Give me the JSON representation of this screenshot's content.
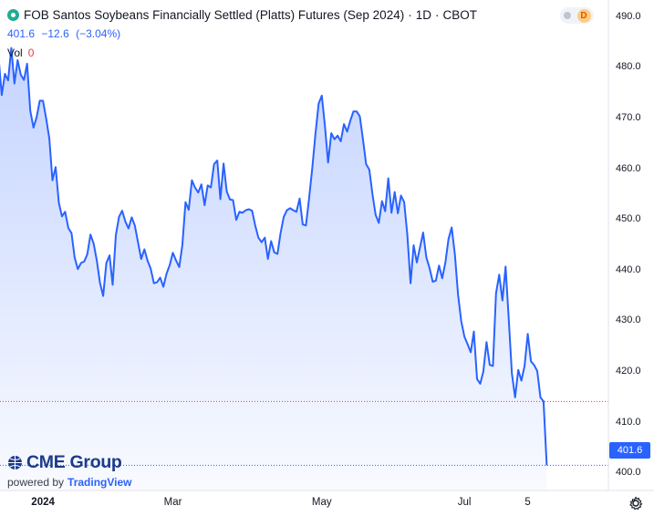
{
  "header": {
    "title": "FOB Santos Soybeans Financially Settled (Platts) Futures (Sep 2024)",
    "interval": "1D",
    "exchange": "CBOT",
    "separator": "·",
    "badge_letter": "D"
  },
  "quote": {
    "last": "401.6",
    "change": "−12.6",
    "change_pct": "(−3.04%)"
  },
  "volume": {
    "label": "Vol",
    "value": "0"
  },
  "branding": {
    "logo_text": "CME Group",
    "powered_by": "powered by",
    "platform": "TradingView"
  },
  "last_price_label": "401.6",
  "colors": {
    "line": "#2962ff",
    "fill_top": "#2962ff",
    "accent": "#2962ff",
    "down": "#f23645",
    "prev_close": "#f23645"
  },
  "chart_data": {
    "type": "area",
    "title": "FOB Santos Soybeans Financially Settled (Platts) Futures (Sep 2024)",
    "xlabel": "",
    "ylabel": "",
    "ylim": [
      397,
      493
    ],
    "y_ticks": [
      "490.0",
      "480.0",
      "470.0",
      "460.0",
      "450.0",
      "440.0",
      "430.0",
      "420.0",
      "410.0",
      "400.0"
    ],
    "x_ticks": [
      {
        "label": "2024",
        "bold": true,
        "x": 0
      },
      {
        "label": "Mar",
        "bold": false,
        "x": 41
      },
      {
        "label": "May",
        "bold": false,
        "x": 88
      },
      {
        "label": "Jul",
        "bold": false,
        "x": 133
      },
      {
        "label": "5",
        "bold": false,
        "x": 153
      }
    ],
    "x_range": [
      -15,
      175
    ],
    "previous_close": 414.2,
    "last_price": 401.6,
    "grid": false,
    "series": [
      {
        "values": [
          [
            -15,
            486.5
          ],
          [
            -14,
            482.0
          ],
          [
            -13,
            474.6
          ],
          [
            -12,
            478.8
          ],
          [
            -11,
            477.5
          ],
          [
            -10,
            483.9
          ],
          [
            -9,
            476.9
          ],
          [
            -8,
            481.5
          ],
          [
            -7,
            478.6
          ],
          [
            -6,
            477.6
          ],
          [
            -5,
            480.8
          ],
          [
            -4,
            471.5
          ],
          [
            -3,
            468.2
          ],
          [
            -2,
            470.3
          ],
          [
            -1,
            473.5
          ],
          [
            0,
            473.5
          ],
          [
            1,
            470.0
          ],
          [
            2,
            466.0
          ],
          [
            3,
            457.8
          ],
          [
            4,
            460.4
          ],
          [
            5,
            453.4
          ],
          [
            6,
            450.7
          ],
          [
            7,
            451.6
          ],
          [
            8,
            448.4
          ],
          [
            9,
            447.4
          ],
          [
            10,
            442.6
          ],
          [
            11,
            440.3
          ],
          [
            12,
            441.5
          ],
          [
            13,
            441.8
          ],
          [
            14,
            443.2
          ],
          [
            15,
            447.1
          ],
          [
            16,
            445.3
          ],
          [
            17,
            441.9
          ],
          [
            18,
            437.6
          ],
          [
            19,
            435.0
          ],
          [
            20,
            441.5
          ],
          [
            21,
            443.0
          ],
          [
            22,
            437.2
          ],
          [
            23,
            447.0
          ],
          [
            24,
            450.6
          ],
          [
            25,
            451.8
          ],
          [
            26,
            449.7
          ],
          [
            27,
            448.3
          ],
          [
            28,
            450.5
          ],
          [
            29,
            448.9
          ],
          [
            30,
            445.6
          ],
          [
            31,
            442.3
          ],
          [
            32,
            444.2
          ],
          [
            33,
            442.0
          ],
          [
            34,
            440.4
          ],
          [
            35,
            437.5
          ],
          [
            36,
            437.7
          ],
          [
            37,
            438.6
          ],
          [
            38,
            436.8
          ],
          [
            39,
            439.4
          ],
          [
            40,
            441.1
          ],
          [
            41,
            443.5
          ],
          [
            42,
            442.0
          ],
          [
            43,
            440.7
          ],
          [
            44,
            445.0
          ],
          [
            45,
            453.5
          ],
          [
            46,
            452.0
          ],
          [
            47,
            457.8
          ],
          [
            48,
            456.4
          ],
          [
            49,
            455.4
          ],
          [
            50,
            457.0
          ],
          [
            51,
            452.9
          ],
          [
            52,
            456.8
          ],
          [
            53,
            456.4
          ],
          [
            54,
            461.0
          ],
          [
            55,
            461.7
          ],
          [
            56,
            454.1
          ],
          [
            57,
            461.1
          ],
          [
            58,
            455.6
          ],
          [
            59,
            454.0
          ],
          [
            60,
            453.9
          ],
          [
            61,
            450.0
          ],
          [
            62,
            451.6
          ],
          [
            63,
            451.4
          ],
          [
            64,
            451.9
          ],
          [
            65,
            452.1
          ],
          [
            66,
            451.8
          ],
          [
            67,
            448.9
          ],
          [
            68,
            446.5
          ],
          [
            69,
            445.6
          ],
          [
            70,
            446.5
          ],
          [
            71,
            442.3
          ],
          [
            72,
            445.8
          ],
          [
            73,
            443.6
          ],
          [
            74,
            443.3
          ],
          [
            75,
            447.4
          ],
          [
            76,
            450.6
          ],
          [
            77,
            451.9
          ],
          [
            78,
            452.3
          ],
          [
            79,
            451.9
          ],
          [
            80,
            451.6
          ],
          [
            81,
            454.2
          ],
          [
            82,
            449.1
          ],
          [
            83,
            448.9
          ],
          [
            84,
            454.3
          ],
          [
            85,
            460.3
          ],
          [
            86,
            466.9
          ],
          [
            87,
            472.9
          ],
          [
            88,
            474.5
          ],
          [
            89,
            468.4
          ],
          [
            90,
            461.3
          ],
          [
            91,
            467.1
          ],
          [
            92,
            465.9
          ],
          [
            93,
            466.6
          ],
          [
            94,
            465.5
          ],
          [
            95,
            468.9
          ],
          [
            96,
            467.4
          ],
          [
            97,
            469.6
          ],
          [
            98,
            471.4
          ],
          [
            99,
            471.4
          ],
          [
            100,
            470.4
          ],
          [
            101,
            465.9
          ],
          [
            102,
            461.0
          ],
          [
            103,
            459.9
          ],
          [
            104,
            455.0
          ],
          [
            105,
            451.0
          ],
          [
            106,
            449.4
          ],
          [
            107,
            453.7
          ],
          [
            108,
            451.7
          ],
          [
            109,
            458.2
          ],
          [
            110,
            451.4
          ],
          [
            111,
            455.5
          ],
          [
            112,
            451.3
          ],
          [
            113,
            454.8
          ],
          [
            114,
            453.5
          ],
          [
            115,
            447.0
          ],
          [
            116,
            437.5
          ],
          [
            117,
            445.0
          ],
          [
            118,
            441.6
          ],
          [
            119,
            444.6
          ],
          [
            120,
            447.5
          ],
          [
            121,
            442.6
          ],
          [
            122,
            440.5
          ],
          [
            123,
            437.8
          ],
          [
            124,
            438.0
          ],
          [
            125,
            441.0
          ],
          [
            126,
            438.5
          ],
          [
            127,
            441.6
          ],
          [
            128,
            446.2
          ],
          [
            129,
            448.5
          ],
          [
            130,
            443.2
          ],
          [
            131,
            435.2
          ],
          [
            132,
            430.1
          ],
          [
            133,
            427.0
          ],
          [
            134,
            425.5
          ],
          [
            135,
            423.9
          ],
          [
            136,
            428.0
          ],
          [
            137,
            418.6
          ],
          [
            138,
            417.7
          ],
          [
            139,
            420.1
          ],
          [
            140,
            425.9
          ],
          [
            141,
            421.4
          ],
          [
            142,
            421.2
          ],
          [
            143,
            435.5
          ],
          [
            144,
            439.2
          ],
          [
            145,
            434.1
          ],
          [
            146,
            440.8
          ],
          [
            147,
            430.6
          ],
          [
            148,
            419.7
          ],
          [
            149,
            415.0
          ],
          [
            150,
            420.4
          ],
          [
            151,
            418.3
          ],
          [
            152,
            421.2
          ],
          [
            153,
            427.5
          ],
          [
            154,
            422.1
          ],
          [
            155,
            421.4
          ],
          [
            156,
            420.2
          ],
          [
            157,
            415.0
          ],
          [
            158,
            414.2
          ],
          [
            159,
            401.6
          ]
        ]
      }
    ]
  }
}
